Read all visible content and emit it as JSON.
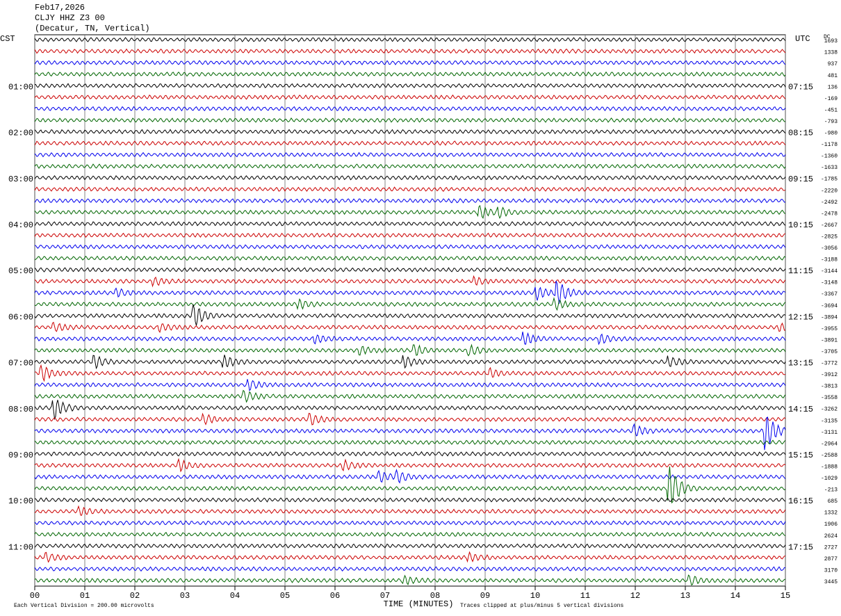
{
  "header": {
    "date": "Feb17,2026",
    "station": "CLJY HHZ Z3 00",
    "location": "(Decatur, TN, Vertical)"
  },
  "left_axis": {
    "title": "CST",
    "labels": [
      "01:00",
      "02:00",
      "03:00",
      "04:00",
      "05:00",
      "06:00",
      "07:00",
      "08:00",
      "09:00",
      "10:00",
      "11:00"
    ]
  },
  "right_axis": {
    "title": "UTC",
    "labels": [
      "07:15",
      "08:15",
      "09:15",
      "10:15",
      "11:15",
      "12:15",
      "13:15",
      "14:15",
      "15:15",
      "16:15",
      "17:15"
    ]
  },
  "dc_header": "DC",
  "dc_offsets": [
    "1693",
    "1338",
    "937",
    "481",
    "136",
    "-169",
    "-451",
    "-793",
    "-980",
    "-1178",
    "-1360",
    "-1633",
    "-1785",
    "-2220",
    "-2492",
    "-2478",
    "-2667",
    "-2825",
    "-3056",
    "-3188",
    "-3144",
    "-3148",
    "-3367",
    "-3694",
    "-3894",
    "-3955",
    "-3891",
    "-3705",
    "-3772",
    "-3912",
    "-3813",
    "-3558",
    "-3262",
    "-3135",
    "-3131",
    "-2964",
    "-2588",
    "-1888",
    "-1029",
    "-213",
    "685",
    "1332",
    "1906",
    "2624",
    "2727",
    "2877",
    "3170",
    "3445"
  ],
  "x_ticks": [
    "00",
    "01",
    "02",
    "03",
    "04",
    "05",
    "06",
    "07",
    "08",
    "09",
    "10",
    "11",
    "12",
    "13",
    "14",
    "15"
  ],
  "footer": {
    "scale": "Each Vertical Division =  200.00 microvolts",
    "x_title": "TIME (MINUTES)",
    "clip_note": "Traces clipped at plus/minus 5 vertical divisions"
  }
}
